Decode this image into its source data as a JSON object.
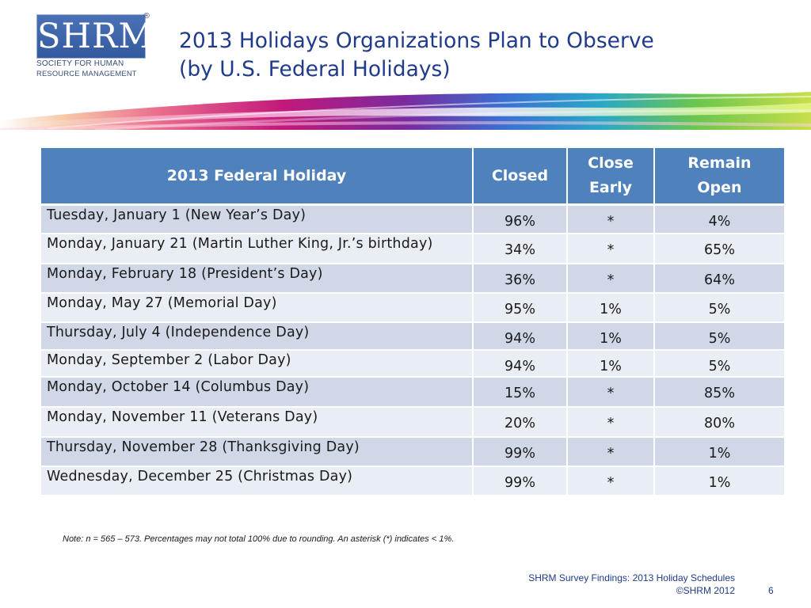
{
  "logo": {
    "text": "SHRM",
    "registered": "®",
    "line1": "SOCIETY FOR HUMAN",
    "line2": "RESOURCE MANAGEMENT"
  },
  "title": {
    "line1": "2013 Holidays Organizations Plan to Observe",
    "line2": "(by U.S. Federal Holidays)"
  },
  "table": {
    "headers": {
      "holiday": "2013 Federal Holiday",
      "closed": "Closed",
      "close_early_1": "Close",
      "close_early_2": "Early",
      "remain_open_1": "Remain",
      "remain_open_2": "Open"
    },
    "rows": [
      {
        "holiday": "Tuesday, January 1 (New Year’s Day)",
        "closed": "96%",
        "early": "*",
        "open": "4%"
      },
      {
        "holiday": "Monday, January 21 (Martin Luther King, Jr.’s birthday)",
        "closed": "34%",
        "early": "*",
        "open": "65%"
      },
      {
        "holiday": "Monday, February 18 (President’s Day)",
        "closed": "36%",
        "early": "*",
        "open": "64%"
      },
      {
        "holiday": "Monday, May 27 (Memorial Day)",
        "closed": "95%",
        "early": "1%",
        "open": "5%"
      },
      {
        "holiday": "Thursday, July 4 (Independence Day)",
        "closed": "94%",
        "early": "1%",
        "open": "5%"
      },
      {
        "holiday": "Monday, September 2 (Labor Day)",
        "closed": "94%",
        "early": "1%",
        "open": "5%"
      },
      {
        "holiday": "Monday, October 14 (Columbus Day)",
        "closed": "15%",
        "early": "*",
        "open": "85%"
      },
      {
        "holiday": "Monday, November 11 (Veterans Day)",
        "closed": "20%",
        "early": "*",
        "open": "80%"
      },
      {
        "holiday": "Thursday, November 28 (Thanksgiving Day)",
        "closed": "99%",
        "early": "*",
        "open": "1%"
      },
      {
        "holiday": "Wednesday, December 25 (Christmas Day)",
        "closed": "99%",
        "early": "*",
        "open": "1%"
      }
    ]
  },
  "note": "Note: n = 565 – 573. Percentages may not total 100% due to rounding. An asterisk (*) indicates < 1%.",
  "footer": {
    "line1": "SHRM Survey Findings: 2013 Holiday Schedules",
    "line2": "©SHRM 2012",
    "page": "6"
  },
  "colors": {
    "title": "#1f3b8a",
    "header_bg": "#4f81bd",
    "row_dark": "#d0d8e8",
    "row_light": "#e9edf4"
  }
}
